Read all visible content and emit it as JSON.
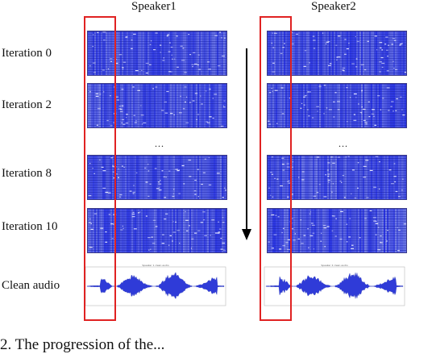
{
  "columns": [
    "Speaker1",
    "Speaker2"
  ],
  "rows": [
    "Iteration 0",
    "Iteration 2",
    "Iteration 8",
    "Iteration 10",
    "Clean audio"
  ],
  "ellipsis": "...",
  "waveform_title": [
    "Speaker 1 clean audio",
    "Speaker 2 clean audio"
  ],
  "caption": "2. The progression of the...",
  "colors": {
    "spectrogram": "#2f3bd8",
    "highlight": "#e02222",
    "arrow": "#000000"
  }
}
